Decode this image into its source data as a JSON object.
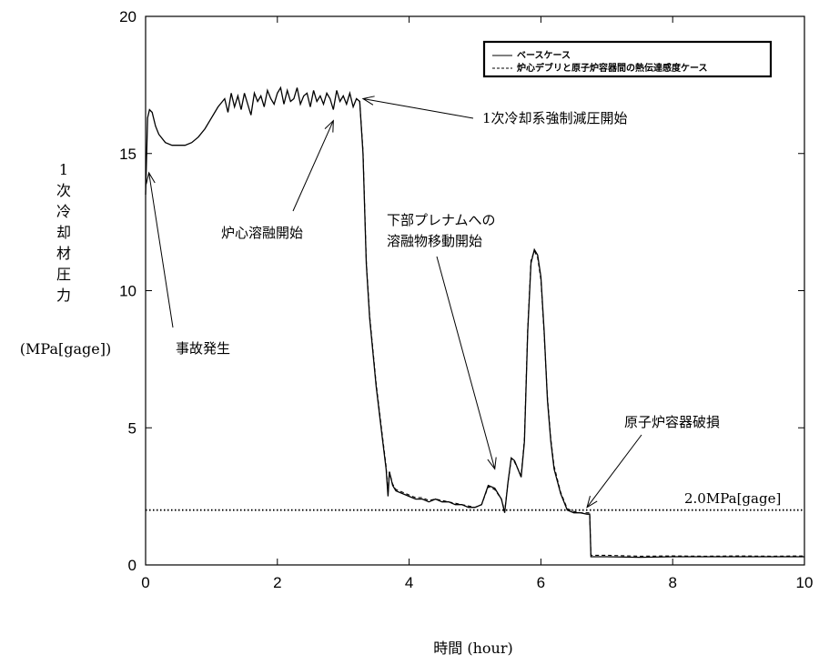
{
  "chart_data": {
    "type": "line",
    "xlabel": "時間 (hour)",
    "ylabel_chars": [
      "1",
      "次",
      "冷",
      "却",
      "材",
      "圧",
      "力"
    ],
    "ylabel_unit": "(MPa[gage])",
    "xlim": [
      0,
      10
    ],
    "ylim": [
      0,
      20
    ],
    "xticks": [
      0,
      2,
      4,
      6,
      8,
      10
    ],
    "yticks": [
      0,
      5,
      10,
      15,
      20
    ],
    "grid": false,
    "legend_position": "top-right",
    "series": [
      {
        "name": "ベースケース",
        "style": "solid",
        "x": [
          0.0,
          0.03,
          0.06,
          0.1,
          0.15,
          0.2,
          0.3,
          0.4,
          0.5,
          0.6,
          0.7,
          0.8,
          0.9,
          1.0,
          1.1,
          1.2,
          1.25,
          1.3,
          1.35,
          1.4,
          1.45,
          1.5,
          1.55,
          1.6,
          1.65,
          1.7,
          1.75,
          1.8,
          1.85,
          1.9,
          1.95,
          2.0,
          2.05,
          2.1,
          2.15,
          2.2,
          2.25,
          2.3,
          2.35,
          2.4,
          2.45,
          2.5,
          2.55,
          2.6,
          2.65,
          2.7,
          2.75,
          2.8,
          2.85,
          2.9,
          2.95,
          3.0,
          3.05,
          3.1,
          3.15,
          3.2,
          3.25,
          3.3,
          3.35,
          3.4,
          3.5,
          3.6,
          3.65,
          3.68,
          3.7,
          3.75,
          3.8,
          3.9,
          4.0,
          4.1,
          4.2,
          4.3,
          4.4,
          4.5,
          4.6,
          4.7,
          4.8,
          4.9,
          5.0,
          5.1,
          5.2,
          5.3,
          5.4,
          5.45,
          5.5,
          5.55,
          5.6,
          5.65,
          5.7,
          5.75,
          5.8,
          5.85,
          5.9,
          5.95,
          6.0,
          6.05,
          6.1,
          6.15,
          6.2,
          6.3,
          6.4,
          6.5,
          6.6,
          6.7,
          6.74,
          6.76,
          7.0,
          7.5,
          8.0,
          8.5,
          9.0,
          9.5,
          10.0
        ],
        "y": [
          13.5,
          16.3,
          16.6,
          16.5,
          16.0,
          15.7,
          15.4,
          15.3,
          15.3,
          15.3,
          15.4,
          15.6,
          15.9,
          16.3,
          16.7,
          17.0,
          16.5,
          17.2,
          16.7,
          17.1,
          16.6,
          17.2,
          16.8,
          16.4,
          17.2,
          16.9,
          17.1,
          16.7,
          17.3,
          17.0,
          16.8,
          17.2,
          17.4,
          16.8,
          17.3,
          16.9,
          17.0,
          17.4,
          16.8,
          17.1,
          17.2,
          16.7,
          17.3,
          16.9,
          17.1,
          16.8,
          17.2,
          17.0,
          16.6,
          17.3,
          16.9,
          17.1,
          16.8,
          17.2,
          16.7,
          17.0,
          16.9,
          15.0,
          11.0,
          9.0,
          6.5,
          4.5,
          3.5,
          2.5,
          3.4,
          2.9,
          2.7,
          2.6,
          2.5,
          2.4,
          2.4,
          2.3,
          2.4,
          2.3,
          2.3,
          2.2,
          2.2,
          2.1,
          2.1,
          2.2,
          2.9,
          2.8,
          2.4,
          1.9,
          3.0,
          3.9,
          3.8,
          3.5,
          3.2,
          4.5,
          8.5,
          11.0,
          11.5,
          11.3,
          10.5,
          8.5,
          6.0,
          4.5,
          3.5,
          2.6,
          2.0,
          1.9,
          1.9,
          1.85,
          1.85,
          0.3,
          0.3,
          0.28,
          0.3,
          0.3,
          0.3,
          0.3,
          0.3
        ]
      },
      {
        "name": "炉心デブリと原子炉容器間の熱伝達感度ケース",
        "style": "dashed",
        "x": [
          3.25,
          3.3,
          3.35,
          3.4,
          3.5,
          3.6,
          3.65,
          3.68,
          3.7,
          3.75,
          3.8,
          3.9,
          4.0,
          4.1,
          4.2,
          4.3,
          4.4,
          4.5,
          4.6,
          4.7,
          4.8,
          4.9,
          5.0,
          5.1,
          5.2,
          5.3,
          5.4,
          5.45,
          5.5,
          5.55,
          5.6,
          5.65,
          5.7,
          5.75,
          5.8,
          5.85,
          5.9,
          5.95,
          6.0,
          6.05,
          6.1,
          6.15,
          6.2,
          6.3,
          6.4,
          6.5,
          6.6,
          6.7,
          6.74,
          6.76,
          7.0,
          7.5,
          8.0,
          8.5,
          9.0,
          9.5,
          10.0
        ],
        "y": [
          16.9,
          15.1,
          11.1,
          9.1,
          6.6,
          4.6,
          3.6,
          2.6,
          3.4,
          2.95,
          2.75,
          2.65,
          2.55,
          2.45,
          2.45,
          2.35,
          2.4,
          2.35,
          2.3,
          2.25,
          2.2,
          2.15,
          2.1,
          2.2,
          2.85,
          2.75,
          2.4,
          1.95,
          3.0,
          3.85,
          3.75,
          3.5,
          3.25,
          4.6,
          8.6,
          11.1,
          11.45,
          11.2,
          10.4,
          8.4,
          6.1,
          4.6,
          3.6,
          2.65,
          2.05,
          1.95,
          1.9,
          1.9,
          1.9,
          0.35,
          0.35,
          0.32,
          0.33,
          0.32,
          0.33,
          0.32,
          0.33
        ]
      },
      {
        "name": "2.0MPa[gage]",
        "style": "dotted",
        "x": [
          0,
          10
        ],
        "y": [
          2.0,
          2.0
        ]
      }
    ],
    "annotations": [
      {
        "text": "1次冷却系強制減圧開始",
        "target": [
          3.3,
          17.0
        ]
      },
      {
        "text": "炉心溶融開始",
        "target": [
          2.85,
          16.2
        ]
      },
      {
        "text": "事故発生",
        "target": [
          0.05,
          14.3
        ]
      },
      {
        "text": "下部プレナムへの",
        "target": [
          5.3,
          3.5
        ]
      },
      {
        "text": "溶融物移動開始",
        "target": null
      },
      {
        "text": "原子炉容器破損",
        "target": [
          6.7,
          2.1
        ]
      },
      {
        "text": "2.0MPa[gage]",
        "target": null
      }
    ]
  }
}
